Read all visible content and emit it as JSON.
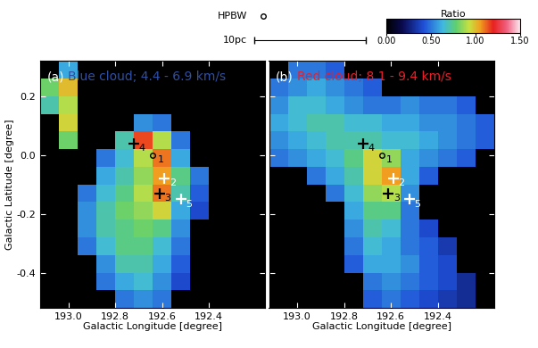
{
  "chart_data": [
    {
      "type": "heatmap",
      "label": "(a)",
      "title": "Blue cloud; 4.4 - 6.9 km/s",
      "color": "#2e4fa3",
      "x_label": "Galactic Longitude [degree]",
      "y_label": "Galactic Latitude [degree]",
      "xlim": [
        193.12,
        192.16
      ],
      "ylim": [
        -0.52,
        0.32
      ],
      "xticks": [
        193.0,
        192.8,
        192.6,
        192.4
      ],
      "yticks": [
        -0.4,
        -0.2,
        0.0,
        0.2
      ],
      "x_edges": [
        193.12,
        193.04,
        192.96,
        192.88,
        192.8,
        192.72,
        192.64,
        192.56,
        192.48,
        192.4,
        192.32,
        192.24,
        192.16
      ],
      "y_edges": [
        -0.52,
        -0.46,
        -0.4,
        -0.34,
        -0.28,
        -0.22,
        -0.16,
        -0.1,
        -0.04,
        0.02,
        0.08,
        0.14,
        0.2,
        0.26,
        0.32
      ],
      "cells": [
        [
          0,
          0,
          0,
          0,
          0.5,
          0.55,
          0.5,
          0,
          0,
          0,
          0,
          0
        ],
        [
          0,
          0,
          0,
          0.5,
          0.6,
          0.65,
          0.55,
          0.4,
          0,
          0,
          0,
          0
        ],
        [
          0,
          0,
          0,
          0.55,
          0.7,
          0.7,
          0.6,
          0.45,
          0,
          0,
          0,
          0
        ],
        [
          0,
          0,
          0.5,
          0.65,
          0.75,
          0.75,
          0.65,
          0.5,
          0,
          0,
          0,
          0
        ],
        [
          0,
          0,
          0.55,
          0.7,
          0.75,
          0.8,
          0.75,
          0.55,
          0,
          0,
          0,
          0
        ],
        [
          0,
          0,
          0.55,
          0.7,
          0.8,
          0.85,
          0.95,
          0.6,
          0.4,
          0,
          0,
          0
        ],
        [
          0,
          0,
          0.5,
          0.65,
          0.75,
          0.9,
          1.1,
          0.7,
          0.45,
          0,
          0,
          0
        ],
        [
          0,
          0,
          0,
          0.6,
          0.7,
          0.85,
          1.05,
          0.75,
          0.5,
          0,
          0,
          0
        ],
        [
          0,
          0,
          0,
          0.5,
          0.65,
          0.9,
          1.1,
          0.6,
          0,
          0,
          0,
          0
        ],
        [
          0,
          0.8,
          0,
          0,
          0.7,
          1.15,
          0.9,
          0.5,
          0,
          0,
          0,
          0
        ],
        [
          0,
          0.95,
          0,
          0,
          0,
          0.55,
          0.5,
          0,
          0,
          0,
          0,
          0
        ],
        [
          0.7,
          0.9,
          0,
          0,
          0,
          0,
          0,
          0,
          0,
          0,
          0,
          0
        ],
        [
          0.8,
          1.0,
          0,
          0,
          0,
          0,
          0,
          0,
          0,
          0,
          0,
          0
        ],
        [
          0,
          0.6,
          0,
          0,
          0,
          0,
          0,
          0,
          0,
          0,
          0,
          0
        ]
      ],
      "markers": [
        {
          "label": "1",
          "x": 192.64,
          "y": 0.0,
          "marker": "circle",
          "color": "#000000"
        },
        {
          "label": "2",
          "x": 192.59,
          "y": -0.08,
          "marker": "plus",
          "color": "#ffffff"
        },
        {
          "label": "3",
          "x": 192.61,
          "y": -0.13,
          "marker": "plus",
          "color": "#000000"
        },
        {
          "label": "4",
          "x": 192.72,
          "y": 0.04,
          "marker": "plus",
          "color": "#000000"
        },
        {
          "label": "5",
          "x": 192.52,
          "y": -0.15,
          "marker": "plus",
          "color": "#ffffff"
        }
      ]
    },
    {
      "type": "heatmap",
      "label": "(b)",
      "title": "Red cloud; 8.1 - 9.4 km/s",
      "color": "#e8202a",
      "x_label": "Galactic Longitude [degree]",
      "tick_labels": "x",
      "xlim": [
        193.12,
        192.16
      ],
      "ylim": [
        -0.52,
        0.32
      ],
      "xticks": [
        193.0,
        192.8,
        192.6,
        192.4
      ],
      "yticks": [
        -0.4,
        -0.2,
        0.0,
        0.2
      ],
      "x_edges": [
        193.12,
        193.04,
        192.96,
        192.88,
        192.8,
        192.72,
        192.64,
        192.56,
        192.48,
        192.4,
        192.32,
        192.24,
        192.16
      ],
      "y_edges": [
        -0.52,
        -0.46,
        -0.4,
        -0.34,
        -0.28,
        -0.22,
        -0.16,
        -0.1,
        -0.04,
        0.02,
        0.08,
        0.14,
        0.2,
        0.26,
        0.32
      ],
      "cells": [
        [
          0,
          0,
          0,
          0,
          0,
          0.45,
          0.5,
          0.45,
          0.4,
          0.35,
          0.3,
          0
        ],
        [
          0,
          0,
          0,
          0,
          0,
          0.5,
          0.55,
          0.5,
          0.45,
          0.4,
          0.3,
          0
        ],
        [
          0,
          0,
          0,
          0,
          0.45,
          0.6,
          0.6,
          0.55,
          0.45,
          0.4,
          0,
          0
        ],
        [
          0,
          0,
          0,
          0,
          0.5,
          0.65,
          0.6,
          0.5,
          0.45,
          0.35,
          0,
          0
        ],
        [
          0,
          0,
          0,
          0,
          0.55,
          0.7,
          0.65,
          0.5,
          0.4,
          0,
          0,
          0
        ],
        [
          0,
          0,
          0,
          0,
          0.6,
          0.75,
          0.75,
          0.5,
          0,
          0,
          0,
          0
        ],
        [
          0,
          0,
          0,
          0.5,
          0.65,
          0.85,
          0.9,
          0.55,
          0,
          0,
          0,
          0
        ],
        [
          0,
          0,
          0.5,
          0.6,
          0.7,
          0.95,
          1.05,
          0.6,
          0.45,
          0,
          0,
          0
        ],
        [
          0.5,
          0.55,
          0.6,
          0.65,
          0.75,
          0.95,
          0.85,
          0.6,
          0.55,
          0.5,
          0.45,
          0
        ],
        [
          0.55,
          0.6,
          0.65,
          0.7,
          0.7,
          0.7,
          0.65,
          0.65,
          0.6,
          0.55,
          0.5,
          0.45
        ],
        [
          0.6,
          0.65,
          0.7,
          0.7,
          0.65,
          0.65,
          0.6,
          0.6,
          0.55,
          0.55,
          0.5,
          0.45
        ],
        [
          0.55,
          0.65,
          0.65,
          0.6,
          0.55,
          0.5,
          0.5,
          0.55,
          0.5,
          0.5,
          0.45,
          0
        ],
        [
          0.5,
          0.55,
          0.6,
          0.55,
          0.5,
          0.45,
          0,
          0,
          0,
          0,
          0,
          0
        ],
        [
          0,
          0.5,
          0.5,
          0.45,
          0,
          0,
          0,
          0,
          0,
          0,
          0,
          0
        ]
      ],
      "markers": [
        {
          "label": "1",
          "x": 192.64,
          "y": 0.0,
          "marker": "circle",
          "color": "#000000"
        },
        {
          "label": "2",
          "x": 192.59,
          "y": -0.08,
          "marker": "plus",
          "color": "#ffffff"
        },
        {
          "label": "3",
          "x": 192.61,
          "y": -0.13,
          "marker": "plus",
          "color": "#000000"
        },
        {
          "label": "4",
          "x": 192.72,
          "y": 0.04,
          "marker": "plus",
          "color": "#000000"
        },
        {
          "label": "5",
          "x": 192.52,
          "y": -0.15,
          "marker": "plus",
          "color": "#ffffff"
        }
      ]
    }
  ],
  "colorbar": {
    "label": "Ratio",
    "range": [
      0,
      1.5
    ],
    "ticks": [
      {
        "value": 0,
        "label": "0.00"
      },
      {
        "value": 0.5,
        "label": "0.50"
      },
      {
        "value": 1.0,
        "label": "1.00"
      },
      {
        "value": 1.5,
        "label": "1.50"
      }
    ]
  },
  "beam_label": "HPBW",
  "scale_label": "10pc"
}
